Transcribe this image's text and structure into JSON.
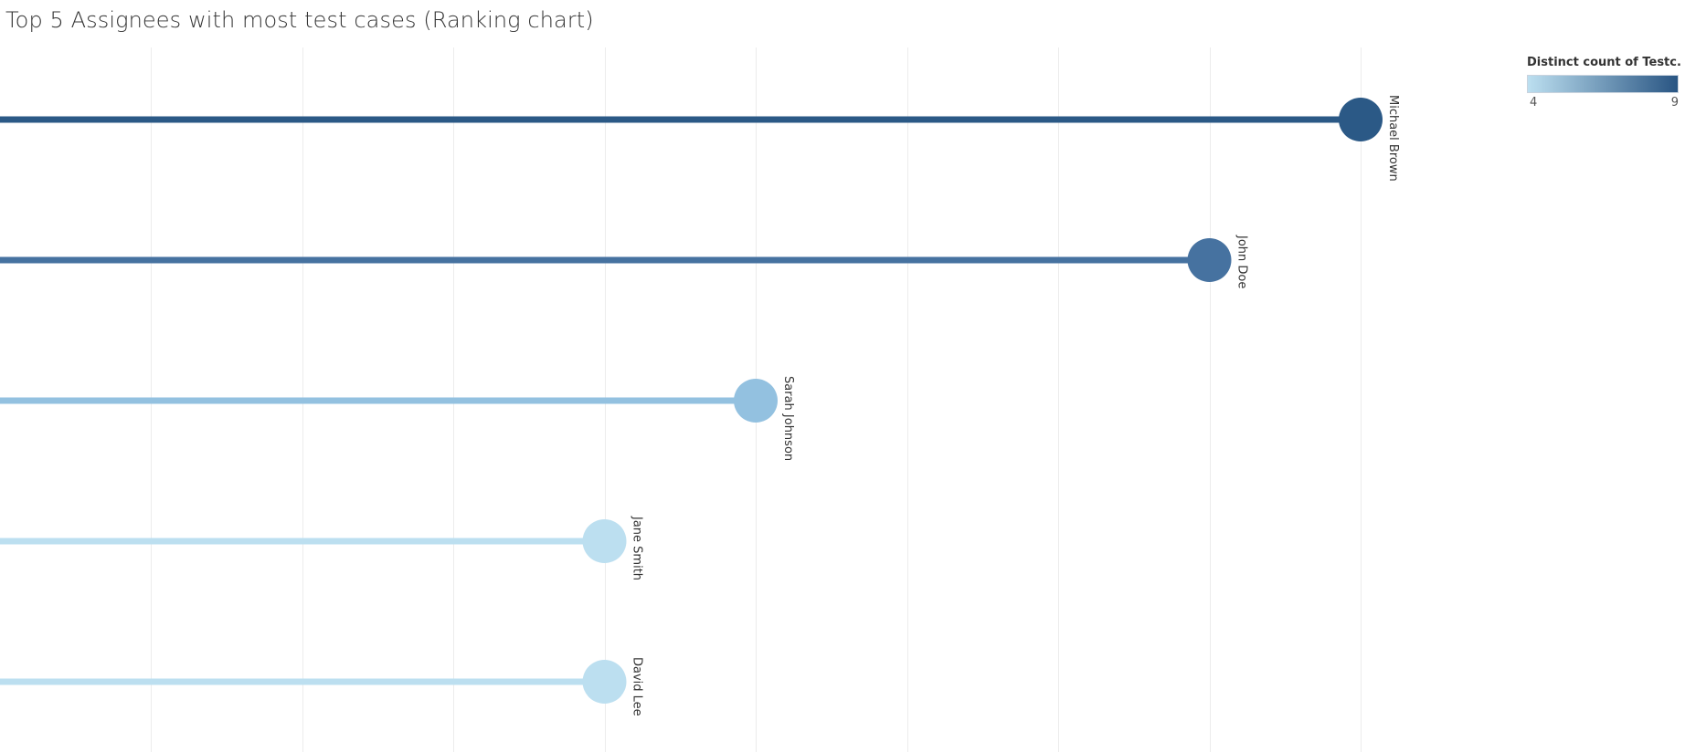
{
  "chart_data": {
    "type": "lollipop",
    "title": "Top 5 Assignees with most test cases (Ranking chart)",
    "xlabel": "",
    "ylabel": "",
    "xlim": [
      0,
      9
    ],
    "grid": "vertical",
    "legend": {
      "title": "Distinct count of Testc..",
      "placement": "top-right",
      "type": "color-gradient",
      "min_label": "4",
      "max_label": "9",
      "min": 4,
      "max": 9,
      "color_low": "#bcdff0",
      "color_high": "#295583"
    },
    "categories": [
      "Michael Brown",
      "John Doe",
      "Sarah Johnson",
      "Jane Smith",
      "David Lee"
    ],
    "values": [
      9,
      8,
      5,
      4,
      4
    ],
    "colors": [
      "#2b5986",
      "#4672a0",
      "#93c1e0",
      "#bcdff0",
      "#bcdff0"
    ]
  }
}
